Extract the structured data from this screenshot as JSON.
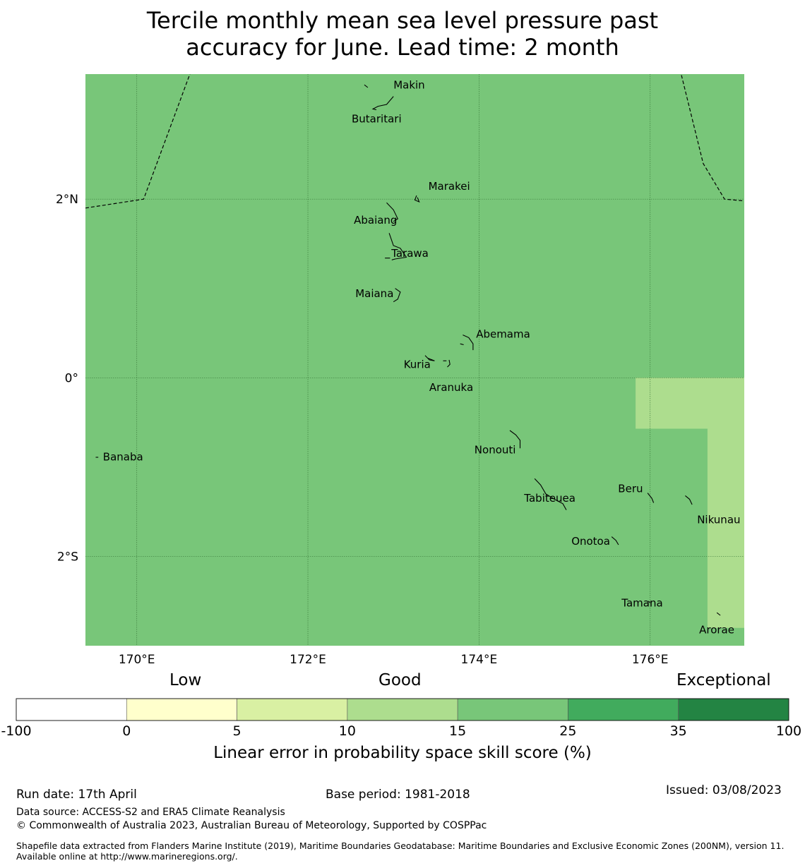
{
  "title_line1": "Tercile monthly mean sea level pressure past",
  "title_line2": "accuracy for June. Lead time: 2 month",
  "colors": {
    "skill_15_25": "#78c679",
    "skill_10_15": "#addd8e",
    "boundary": "#000000"
  },
  "map": {
    "lon_range": [
      169.4,
      177.1
    ],
    "lat_range": [
      -3.0,
      3.4
    ],
    "lon_ticks": [
      {
        "value": 170,
        "label": "170°E"
      },
      {
        "value": 172,
        "label": "172°E"
      },
      {
        "value": 174,
        "label": "174°E"
      },
      {
        "value": 176,
        "label": "176°E"
      }
    ],
    "lat_ticks": [
      {
        "value": 2,
        "label": "2°N"
      },
      {
        "value": 0,
        "label": "0°"
      },
      {
        "value": -2,
        "label": "2°S"
      }
    ],
    "islands": [
      {
        "name": "Makin",
        "lon": 173.0,
        "lat": 3.2
      },
      {
        "name": "Butaritari",
        "lon": 172.8,
        "lat": 3.05
      },
      {
        "name": "Marakei",
        "lon": 173.3,
        "lat": 2.0
      },
      {
        "name": "Abaiang",
        "lon": 172.95,
        "lat": 1.85
      },
      {
        "name": "Tarawa",
        "lon": 173.0,
        "lat": 1.4
      },
      {
        "name": "Maiana",
        "lon": 173.0,
        "lat": 0.92
      },
      {
        "name": "Abemama",
        "lon": 173.85,
        "lat": 0.4
      },
      {
        "name": "Kuria",
        "lon": 173.4,
        "lat": 0.22
      },
      {
        "name": "Aranuka",
        "lon": 173.6,
        "lat": 0.17
      },
      {
        "name": "Nonouti",
        "lon": 174.4,
        "lat": -0.65
      },
      {
        "name": "Banaba",
        "lon": 169.53,
        "lat": -0.87
      },
      {
        "name": "Tabiteuea",
        "lon": 174.8,
        "lat": -1.3
      },
      {
        "name": "Beru",
        "lon": 175.98,
        "lat": -1.33
      },
      {
        "name": "Nikunau",
        "lon": 176.45,
        "lat": -1.37
      },
      {
        "name": "Onotoa",
        "lon": 175.55,
        "lat": -1.8
      },
      {
        "name": "Tamana",
        "lon": 175.98,
        "lat": -2.5
      },
      {
        "name": "Arorae",
        "lon": 176.82,
        "lat": -2.65
      }
    ]
  },
  "legend": {
    "category_low": "Low",
    "category_good": "Good",
    "category_exceptional": "Exceptional",
    "xlabel": "Linear error in probability space skill score (%)",
    "bins": [
      {
        "from": -100,
        "to": 0,
        "color": "#ffffff"
      },
      {
        "from": 0,
        "to": 5,
        "color": "#ffffcc"
      },
      {
        "from": 5,
        "to": 10,
        "color": "#d9f0a3"
      },
      {
        "from": 10,
        "to": 15,
        "color": "#addd8e"
      },
      {
        "from": 15,
        "to": 25,
        "color": "#78c679"
      },
      {
        "from": 25,
        "to": 35,
        "color": "#41ab5d"
      },
      {
        "from": 35,
        "to": 100,
        "color": "#238443"
      }
    ],
    "tick_labels": [
      "-100",
      "0",
      "5",
      "10",
      "15",
      "25",
      "35",
      "100"
    ]
  },
  "footer": {
    "run_date": "Run date: 17th April",
    "base_period": "Base period: 1981-2018",
    "issued": "Issued: 03/08/2023",
    "data_source": "Data source: ACCESS-S2 and ERA5 Climate Reanalysis",
    "copyright": "© Commonwealth of Australia 2023, Australian Bureau of Meteorology, Supported by COSPPac",
    "shapefile": "Shapefile data extracted from Flanders Marine Institute (2019), Maritime Boundaries Geodatabase: Maritime Boundaries and Exclusive Economic Zones (200NM), version 11. Available online at http://www.marineregions.org/."
  }
}
